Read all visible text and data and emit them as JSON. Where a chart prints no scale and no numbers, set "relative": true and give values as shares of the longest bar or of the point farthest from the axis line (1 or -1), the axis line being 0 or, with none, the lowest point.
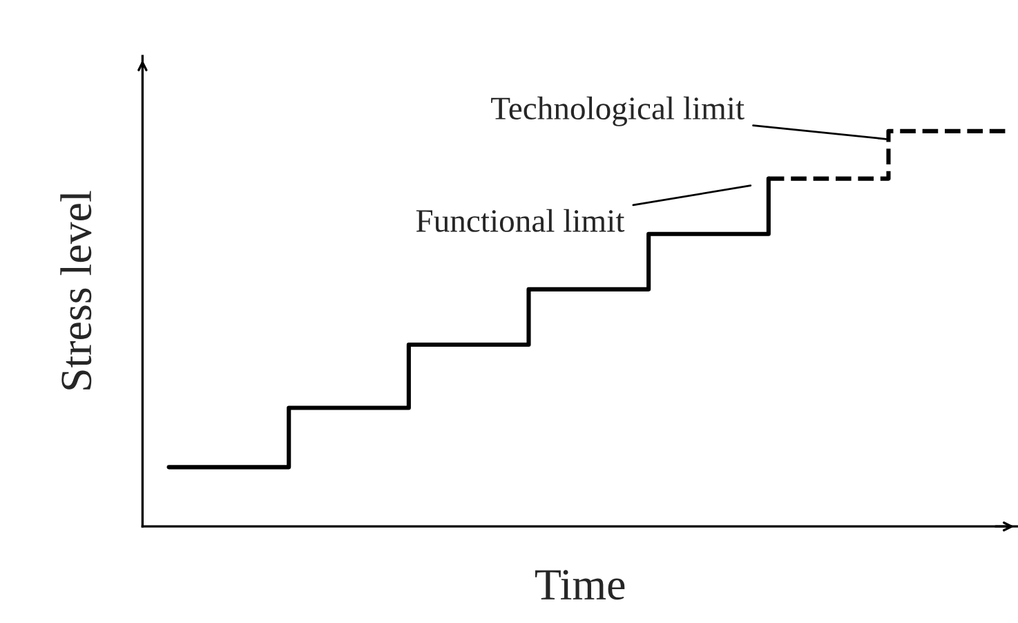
{
  "chart_data": {
    "type": "step",
    "relative": true,
    "xlabel": "Time",
    "ylabel": "Stress level",
    "categories": [
      null,
      null,
      null,
      null,
      null,
      null,
      null,
      null
    ],
    "series": [
      {
        "color": "#000000",
        "line_style": "solid",
        "values": [
          0.15,
          0.3,
          0.46,
          0.6,
          0.74,
          0.88,
          null,
          null
        ]
      },
      {
        "color": "#000000",
        "line_style": "dashed",
        "values": [
          null,
          null,
          null,
          null,
          null,
          0.88,
          1.0,
          1.0
        ]
      }
    ],
    "annotations": [
      "Technological limit",
      "Functional limit"
    ],
    "grid": false,
    "legend": false,
    "tick_labels": false,
    "marker": "none"
  }
}
